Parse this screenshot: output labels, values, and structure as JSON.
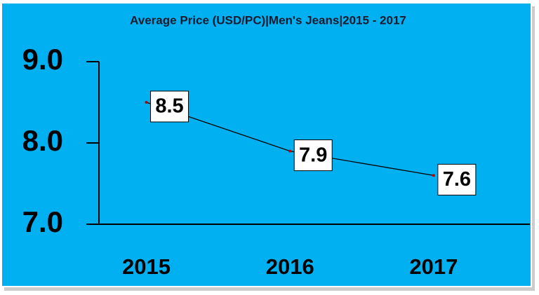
{
  "chart_data": {
    "type": "line",
    "title": "Average Price (USD/PC)|Men's Jeans|2015 - 2017",
    "categories": [
      "2015",
      "2016",
      "2017"
    ],
    "series": [
      {
        "name": "Average Price",
        "color": "#000000",
        "values": [
          8.5,
          7.9,
          7.6
        ]
      }
    ],
    "ylim": [
      7,
      9
    ],
    "yticks": [
      {
        "value": 7,
        "label": "7.0"
      },
      {
        "value": 8,
        "label": "8.0"
      },
      {
        "value": 9,
        "label": "9.0"
      }
    ],
    "background": "#00b0f0"
  }
}
